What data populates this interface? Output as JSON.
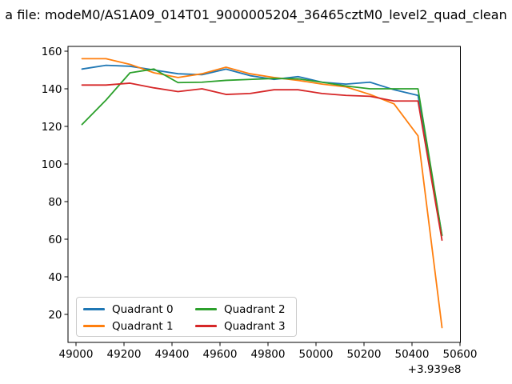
{
  "title": "a file: modeM0/AS1A09_014T01_9000005204_36465cztM0_level2_quad_clean",
  "chart_data": {
    "type": "line",
    "title": "a file: modeM0/AS1A09_014T01_9000005204_36465cztM0_level2_quad_clean",
    "xlabel": "",
    "ylabel": "",
    "grid": false,
    "legend_position": "lower left",
    "legend_columns": 2,
    "x_offset_label": "+3.939e8",
    "x_offset_value": 393900000,
    "x_ticks": [
      49000,
      49200,
      49400,
      49600,
      49800,
      50000,
      50200,
      50400,
      50600
    ],
    "y_ticks": [
      20,
      40,
      60,
      80,
      100,
      120,
      140,
      160
    ],
    "xlim": [
      48967,
      50602
    ],
    "ylim": [
      5,
      163
    ],
    "x": [
      49025,
      49125,
      49225,
      49325,
      49425,
      49525,
      49625,
      49725,
      49825,
      49925,
      50025,
      50125,
      50225,
      50325,
      50425,
      50525
    ],
    "series": [
      {
        "name": "Quadrant 0",
        "color": "#1f77b4",
        "values": [
          150.5,
          152.5,
          152,
          150,
          148,
          147.5,
          150.5,
          147,
          145,
          146.5,
          143.5,
          142.5,
          143.5,
          139.5,
          136.5,
          62
        ]
      },
      {
        "name": "Quadrant 1",
        "color": "#ff7f0e",
        "values": [
          156,
          156,
          153,
          148.5,
          146,
          148,
          151.5,
          148,
          146,
          144.5,
          142.5,
          141,
          137,
          132,
          115,
          13
        ]
      },
      {
        "name": "Quadrant 2",
        "color": "#2ca02c",
        "values": [
          121,
          134,
          148.5,
          150.5,
          143.3,
          143.5,
          144.5,
          145,
          145.5,
          145.3,
          143.5,
          141.5,
          140,
          140,
          140,
          62
        ]
      },
      {
        "name": "Quadrant 3",
        "color": "#d62728",
        "values": [
          142,
          142,
          143,
          140.5,
          138.5,
          140,
          137,
          137.5,
          139.5,
          139.5,
          137.5,
          136.5,
          136,
          133.5,
          133.5,
          59.5
        ]
      }
    ]
  }
}
